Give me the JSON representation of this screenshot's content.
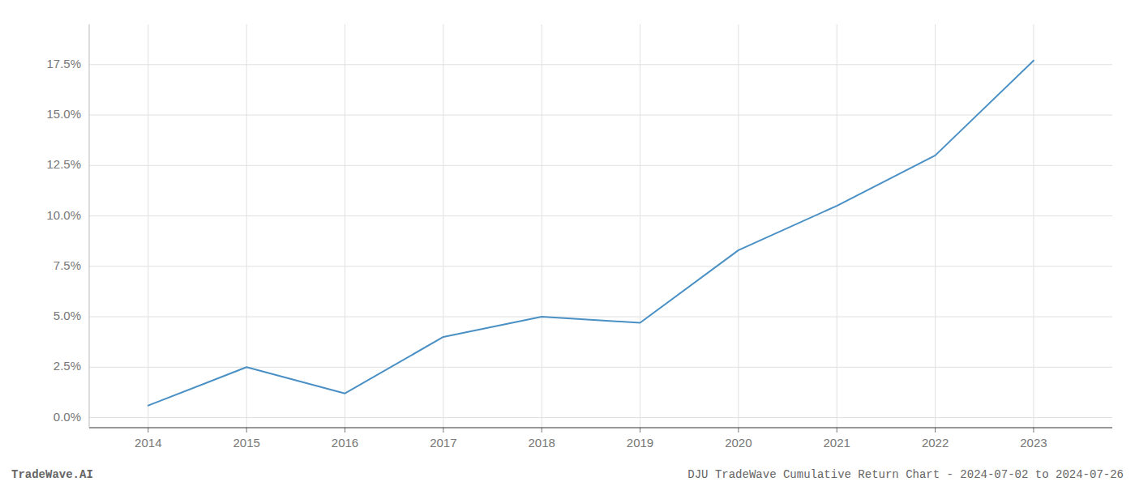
{
  "chart_data": {
    "type": "line",
    "x": [
      2014,
      2015,
      2016,
      2017,
      2018,
      2019,
      2020,
      2021,
      2022,
      2023
    ],
    "values": [
      0.006,
      0.025,
      0.012,
      0.04,
      0.05,
      0.047,
      0.083,
      0.105,
      0.13,
      0.177
    ],
    "color": "#4a90c4",
    "xlim": [
      2013.4,
      2023.8
    ],
    "xticks": [
      2014,
      2015,
      2016,
      2017,
      2018,
      2019,
      2020,
      2021,
      2022,
      2023
    ],
    "ylim": [
      -0.005,
      0.195
    ],
    "yticks": [
      {
        "value": 0.0,
        "label": "0.0%"
      },
      {
        "value": 0.025,
        "label": "2.5%"
      },
      {
        "value": 0.05,
        "label": "5.0%"
      },
      {
        "value": 0.075,
        "label": "7.5%"
      },
      {
        "value": 0.1,
        "label": "10.0%"
      },
      {
        "value": 0.125,
        "label": "12.5%"
      },
      {
        "value": 0.15,
        "label": "15.0%"
      },
      {
        "value": 0.175,
        "label": "17.5%"
      }
    ],
    "grid": true,
    "annotations": [
      "TradeWave.AI",
      "DJU TradeWave Cumulative Return Chart - 2024-07-02 to 2024-07-26"
    ]
  }
}
